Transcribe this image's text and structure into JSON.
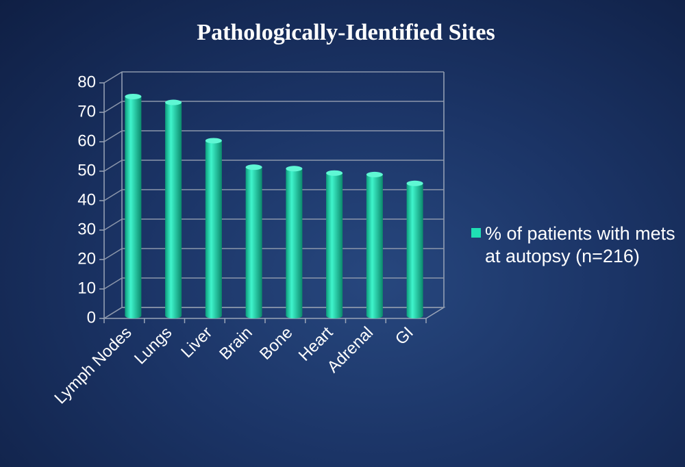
{
  "chart_data": {
    "type": "bar",
    "title": "Pathologically-Identified Sites",
    "categories": [
      "Lymph Nodes",
      "Lungs",
      "Liver",
      "Brain",
      "Bone",
      "Heart",
      "Adrenal",
      "GI"
    ],
    "series": [
      {
        "name": "% of patients with mets at autopsy (n=216)",
        "color": "#1fe0b4",
        "values": [
          73.5,
          71.5,
          58.5,
          49.5,
          49,
          47.5,
          47,
          44
        ]
      }
    ],
    "ylim": [
      0,
      80
    ],
    "yticks": [
      0,
      10,
      20,
      30,
      40,
      50,
      60,
      70,
      80
    ],
    "grid": true,
    "legend": "right"
  }
}
